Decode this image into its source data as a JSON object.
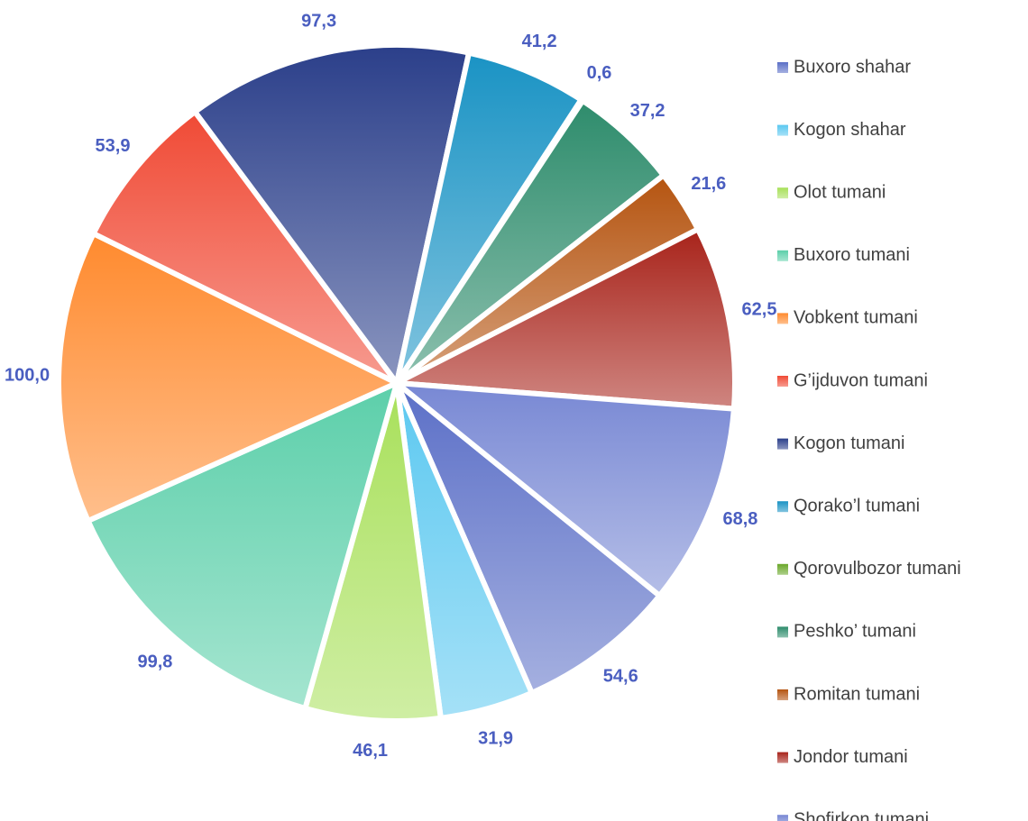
{
  "chart_data": {
    "type": "pie",
    "categories": [
      "Buxoro shahar",
      "Kogon shahar",
      "Olot tumani",
      "Buxoro tumani",
      "Vobkent tumani",
      "G’ijduvon tumani",
      "Kogon tumani",
      "Qorako’l tumani",
      "Qorovulbozor tumani",
      "Peshko’ tumani",
      "Romitan tumani",
      "Jondor tumani",
      "Shofirkon tumani"
    ],
    "values": [
      54.6,
      31.9,
      46.1,
      99.8,
      100.0,
      53.9,
      97.3,
      41.2,
      0.6,
      37.2,
      21.6,
      62.5,
      68.8
    ],
    "value_labels": [
      "54,6",
      "31,9",
      "46,1",
      "99,8",
      "100,0",
      "53,9",
      "97,3",
      "41,2",
      "0,6",
      "37,2",
      "21,6",
      "62,5",
      "68,8"
    ],
    "colors": [
      "#5b6fc7",
      "#5bc8f0",
      "#a8e05a",
      "#5ccfaa",
      "#ff8a2e",
      "#f04a35",
      "#2b3f8a",
      "#1a93c4",
      "#6aa82a",
      "#2e8c6c",
      "#b55410",
      "#a8231a",
      "#7888d4"
    ],
    "legend": "right"
  }
}
